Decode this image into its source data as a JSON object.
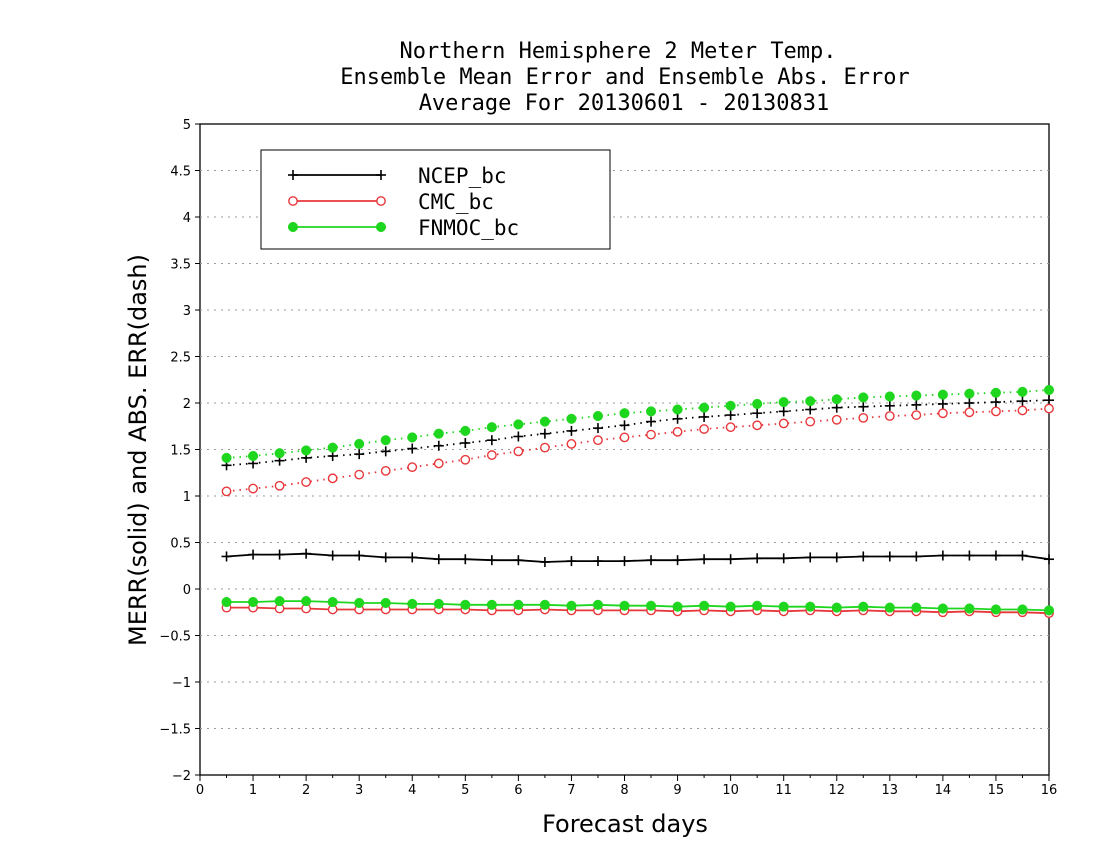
{
  "chart_data": {
    "type": "line",
    "title": [
      "Northern Hemisphere 2 Meter Temp.",
      "Ensemble Mean Error and Ensemble Abs. Error",
      "Average For 20130601 - 20130831"
    ],
    "xlabel": "Forecast days",
    "ylabel": "MERR(solid) and ABS. ERR(dash)",
    "xlim": [
      0,
      16
    ],
    "ylim": [
      -2,
      5
    ],
    "x_ticks": [
      "0",
      "1",
      "2",
      "3",
      "4",
      "5",
      "6",
      "7",
      "8",
      "9",
      "10",
      "11",
      "12",
      "13",
      "14",
      "15",
      "16"
    ],
    "y_ticks": [
      "-2",
      "-1.5",
      "-1",
      "-0.5",
      "0",
      "0.5",
      "1",
      "1.5",
      "2",
      "2.5",
      "3",
      "3.5",
      "4",
      "4.5",
      "5"
    ],
    "grid": true,
    "legend_position": "top-left",
    "x": [
      0.5,
      1,
      1.5,
      2,
      2.5,
      3,
      3.5,
      4,
      4.5,
      5,
      5.5,
      6,
      6.5,
      7,
      7.5,
      8,
      8.5,
      9,
      9.5,
      10,
      10.5,
      11,
      11.5,
      12,
      12.5,
      13,
      13.5,
      14,
      14.5,
      15,
      15.5,
      16
    ],
    "series": [
      {
        "name": "NCEP_bc",
        "color": "#000000",
        "marker": "plus",
        "style": "solid",
        "values": [
          0.35,
          0.37,
          0.37,
          0.38,
          0.36,
          0.36,
          0.34,
          0.34,
          0.32,
          0.32,
          0.31,
          0.31,
          0.29,
          0.3,
          0.3,
          0.3,
          0.31,
          0.31,
          0.32,
          0.32,
          0.33,
          0.33,
          0.34,
          0.34,
          0.35,
          0.35,
          0.35,
          0.36,
          0.36,
          0.36,
          0.36,
          0.32
        ]
      },
      {
        "name": "CMC_bc",
        "color": "#e8373b",
        "marker": "open-circle",
        "style": "solid",
        "values": [
          -0.2,
          -0.2,
          -0.21,
          -0.21,
          -0.22,
          -0.22,
          -0.22,
          -0.22,
          -0.22,
          -0.22,
          -0.23,
          -0.23,
          -0.22,
          -0.23,
          -0.23,
          -0.23,
          -0.23,
          -0.24,
          -0.23,
          -0.24,
          -0.23,
          -0.24,
          -0.23,
          -0.24,
          -0.23,
          -0.24,
          -0.24,
          -0.25,
          -0.24,
          -0.25,
          -0.25,
          -0.26
        ]
      },
      {
        "name": "FNMOC_bc",
        "color": "#1fd61f",
        "marker": "filled-circle",
        "style": "solid",
        "values": [
          -0.14,
          -0.14,
          -0.13,
          -0.13,
          -0.14,
          -0.15,
          -0.15,
          -0.16,
          -0.16,
          -0.17,
          -0.17,
          -0.17,
          -0.17,
          -0.18,
          -0.17,
          -0.18,
          -0.18,
          -0.19,
          -0.18,
          -0.19,
          -0.18,
          -0.19,
          -0.19,
          -0.2,
          -0.19,
          -0.2,
          -0.2,
          -0.21,
          -0.21,
          -0.22,
          -0.22,
          -0.23
        ]
      },
      {
        "name": "NCEP_bc",
        "color": "#000000",
        "marker": "plus",
        "style": "dotted",
        "values": [
          1.33,
          1.35,
          1.38,
          1.41,
          1.43,
          1.45,
          1.48,
          1.51,
          1.54,
          1.57,
          1.6,
          1.64,
          1.67,
          1.7,
          1.73,
          1.76,
          1.8,
          1.83,
          1.85,
          1.87,
          1.89,
          1.91,
          1.93,
          1.95,
          1.96,
          1.97,
          1.98,
          1.99,
          2.0,
          2.01,
          2.02,
          2.03
        ]
      },
      {
        "name": "CMC_bc",
        "color": "#e8373b",
        "marker": "open-circle",
        "style": "dotted",
        "values": [
          1.05,
          1.08,
          1.11,
          1.15,
          1.19,
          1.23,
          1.27,
          1.31,
          1.35,
          1.39,
          1.44,
          1.48,
          1.52,
          1.56,
          1.6,
          1.63,
          1.66,
          1.69,
          1.72,
          1.74,
          1.76,
          1.78,
          1.8,
          1.82,
          1.84,
          1.86,
          1.87,
          1.89,
          1.9,
          1.91,
          1.92,
          1.94
        ]
      },
      {
        "name": "FNMOC_bc",
        "color": "#1fd61f",
        "marker": "filled-circle",
        "style": "dotted",
        "values": [
          1.41,
          1.43,
          1.46,
          1.49,
          1.52,
          1.56,
          1.6,
          1.63,
          1.67,
          1.7,
          1.74,
          1.77,
          1.8,
          1.83,
          1.86,
          1.89,
          1.91,
          1.93,
          1.95,
          1.97,
          1.99,
          2.01,
          2.02,
          2.04,
          2.06,
          2.07,
          2.08,
          2.09,
          2.1,
          2.11,
          2.12,
          2.14
        ]
      }
    ],
    "legend": [
      "NCEP_bc",
      "CMC_bc",
      "FNMOC_bc"
    ]
  }
}
